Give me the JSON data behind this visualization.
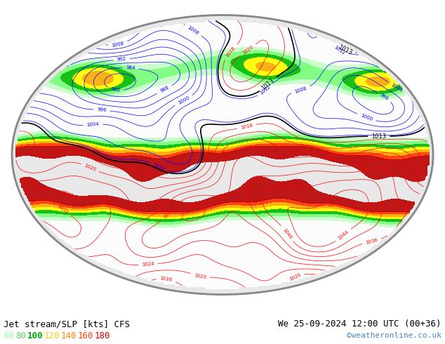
{
  "title_left": "Jet stream/SLP [kts] CFS",
  "title_right": "We 25-09-2024 12:00 UTC (00+36)",
  "copyright": "©weatheronline.co.uk",
  "legend_values": [
    "60",
    "80",
    "100",
    "120",
    "140",
    "160",
    "180"
  ],
  "legend_colors": [
    "#99ff99",
    "#66cc66",
    "#00aa00",
    "#ffcc00",
    "#ff8800",
    "#ff4400",
    "#cc0000"
  ],
  "panel_bg": "#ffffff",
  "font_size_title": 9,
  "font_size_legend": 9,
  "font_size_copyright": 8
}
